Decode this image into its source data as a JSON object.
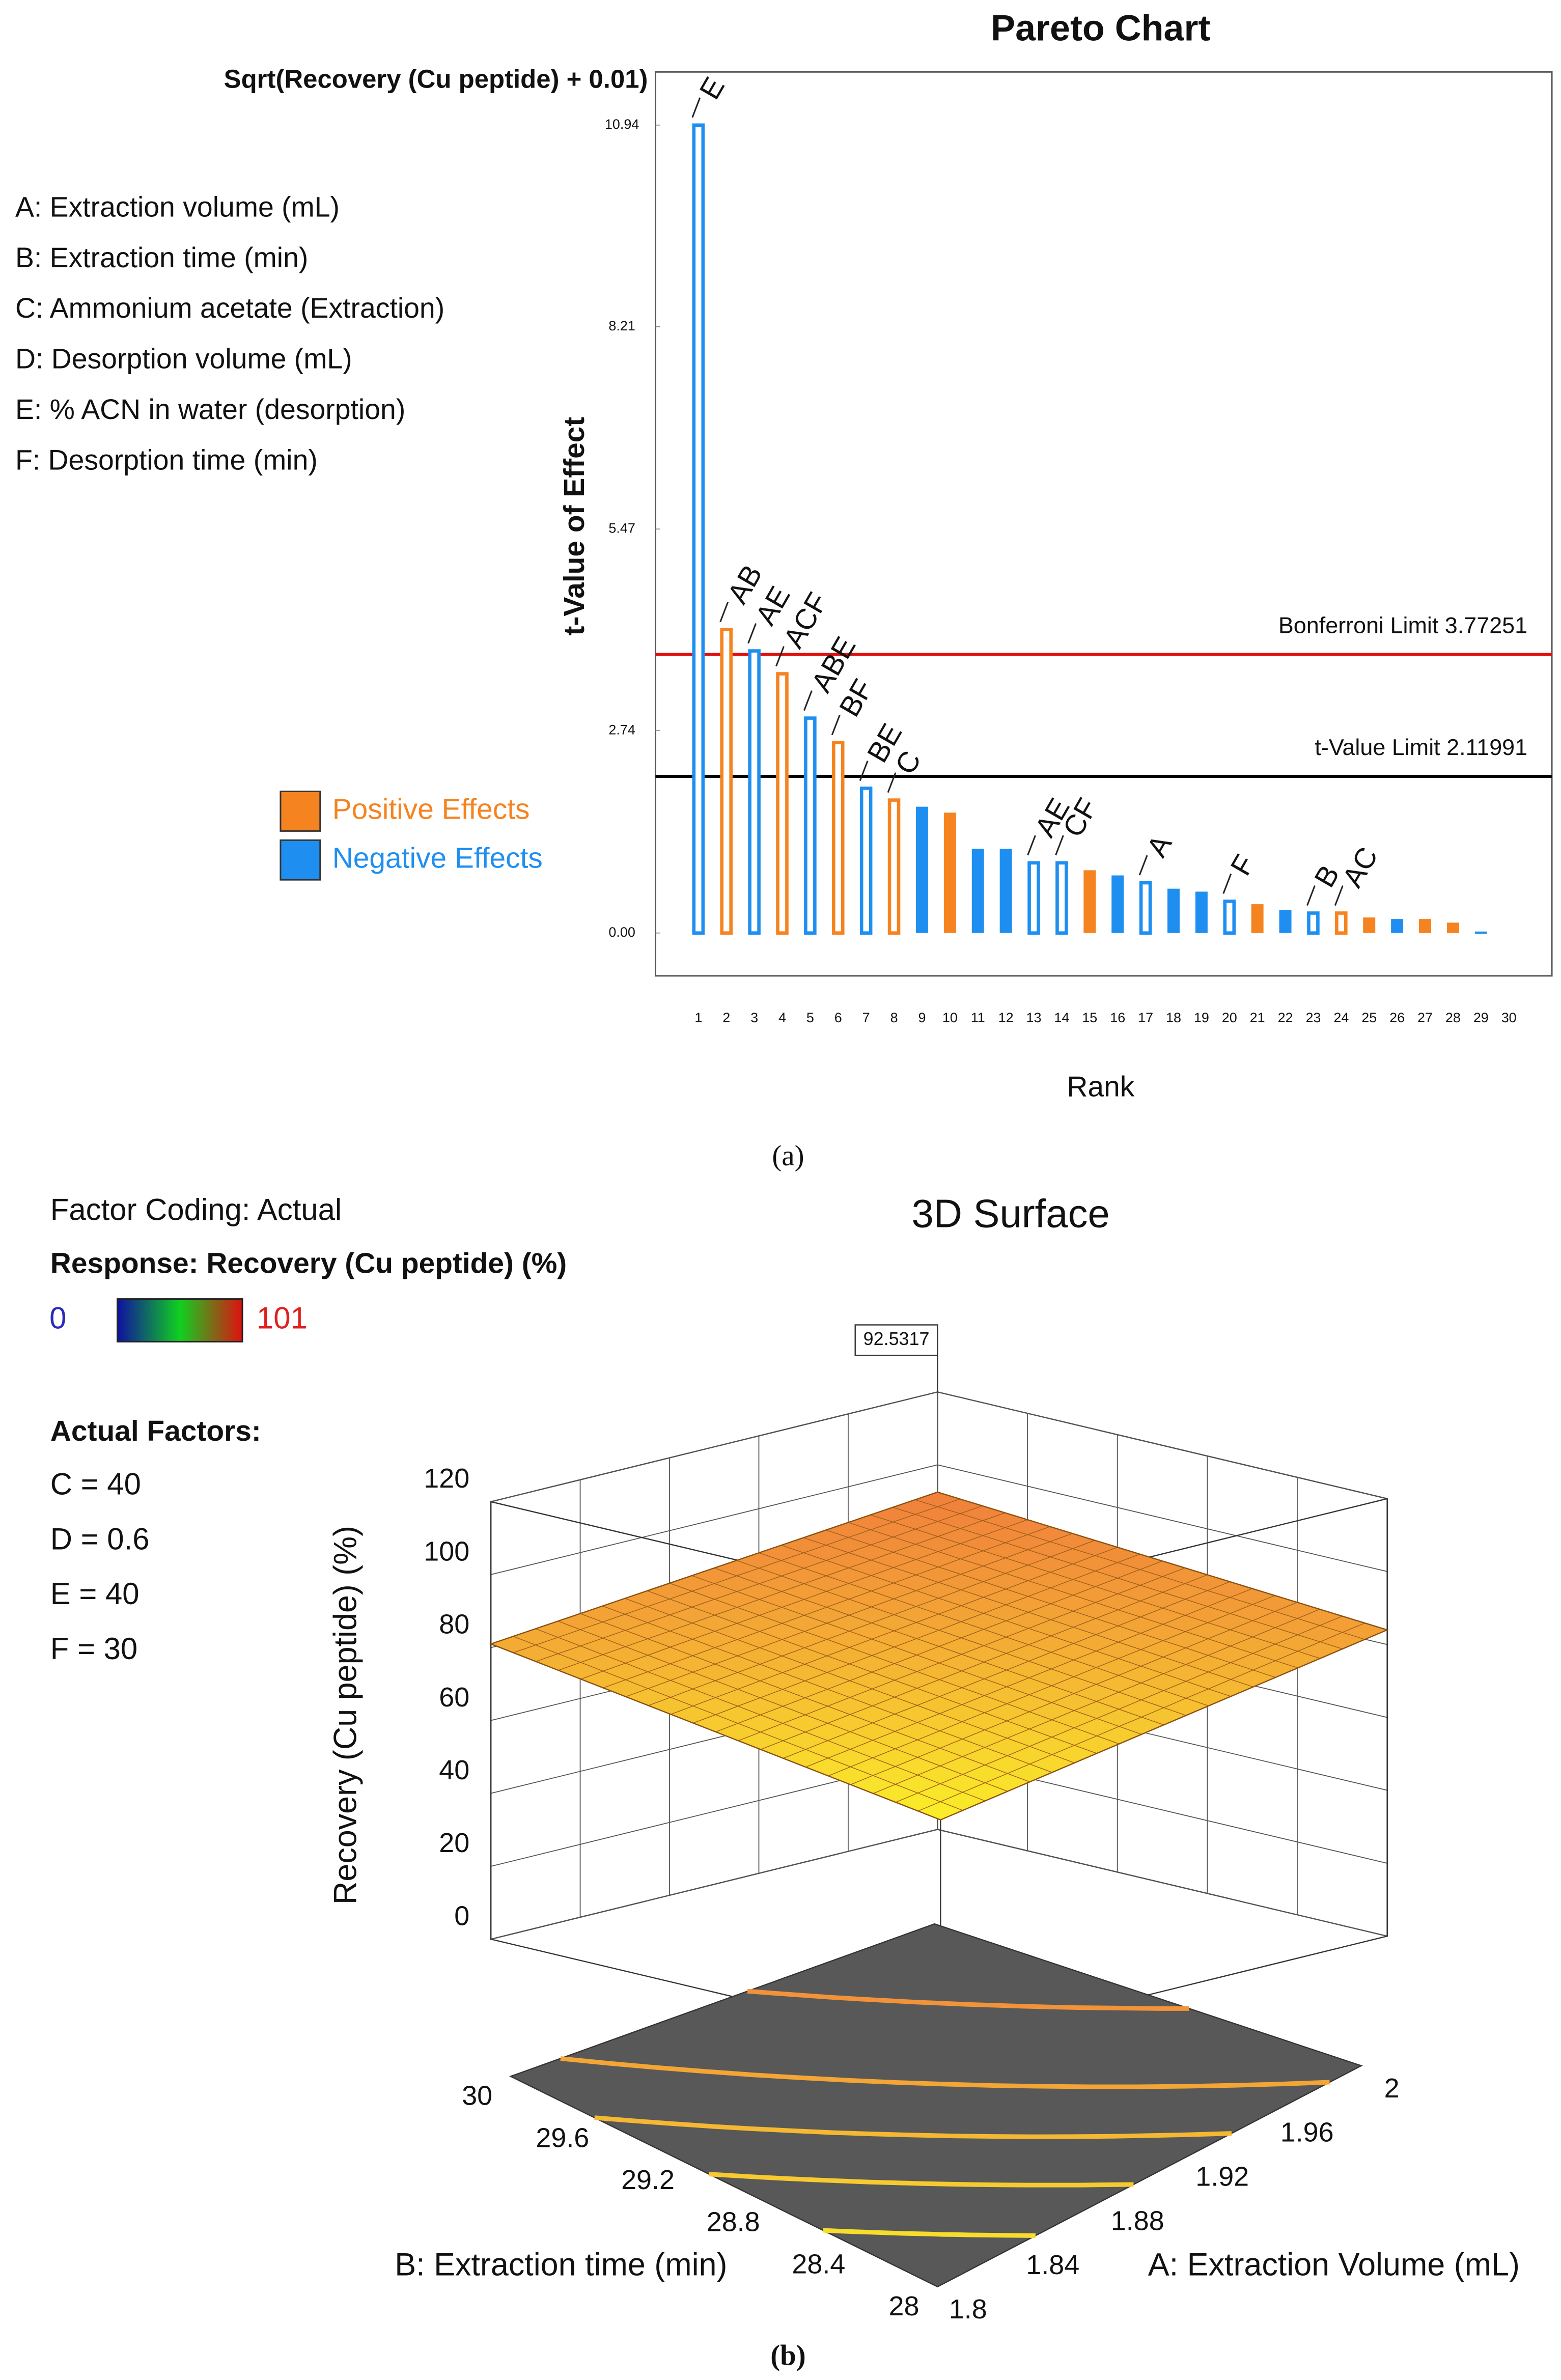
{
  "chart_data": [
    {
      "type": "bar",
      "title": "Pareto Chart",
      "subtitle": "Sqrt(Recovery (Cu peptide) + 0.01)",
      "ylabel": "t-Value of Effect",
      "xlabel": "Rank",
      "caption": "(a)",
      "factors": [
        "A: Extraction volume (mL)",
        "B: Extraction time (min)",
        "C: Ammonium acetate (Extraction)",
        "D: Desorption volume (mL)",
        "E: % ACN in water (desorption)",
        "F: Desorption time (min)"
      ],
      "categories": [
        "1",
        "2",
        "3",
        "4",
        "5",
        "6",
        "7",
        "8",
        "9",
        "10",
        "11",
        "12",
        "13",
        "14",
        "15",
        "16",
        "17",
        "18",
        "19",
        "20",
        "21",
        "22",
        "23",
        "24",
        "25",
        "26",
        "27",
        "28",
        "29",
        "30"
      ],
      "series": [
        {
          "name": "Positive Effects",
          "color": "#f5831f",
          "values": [
            null,
            4.11,
            null,
            3.51,
            null,
            2.58,
            null,
            1.8,
            null,
            1.63,
            null,
            null,
            null,
            null,
            0.85,
            null,
            null,
            null,
            null,
            null,
            0.39,
            null,
            null,
            0.27,
            0.21,
            null,
            0.19,
            0.14,
            null,
            null
          ]
        },
        {
          "name": "Negative Effects",
          "color": "#1e8ff0",
          "values": [
            10.94,
            null,
            3.82,
            null,
            2.91,
            null,
            1.96,
            null,
            1.71,
            null,
            1.14,
            1.14,
            0.95,
            0.95,
            null,
            0.78,
            0.68,
            0.6,
            0.56,
            0.43,
            null,
            0.31,
            0.27,
            null,
            null,
            0.19,
            null,
            null,
            0.02,
            null
          ]
        }
      ],
      "bar_labels": [
        "E",
        "AB",
        "AE",
        "ACF",
        "ABE",
        "BF",
        "BE",
        "C",
        null,
        null,
        null,
        null,
        "AE",
        "CF",
        null,
        null,
        "A",
        null,
        null,
        "F",
        null,
        null,
        "B",
        "AC",
        null,
        null,
        null,
        null,
        null,
        null
      ],
      "reference_lines": [
        {
          "value": 3.77251,
          "label": "Bonferroni Limit 3.77251",
          "color": "#e01010"
        },
        {
          "value": 2.11991,
          "label": "t-Value Limit 2.11991",
          "color": "#000000"
        }
      ],
      "ylim": [
        -0.58,
        11.66
      ],
      "yticks": [
        {
          "value": 0,
          "label": "0.00"
        },
        2.74,
        5.47,
        8.21,
        10.94
      ]
    },
    {
      "type": "surface",
      "title": "3D Surface",
      "caption": "(b)",
      "coding": "Factor Coding: Actual",
      "response": "Response: Recovery (Cu peptide) (%)",
      "colorbar": {
        "min": 0,
        "max": 101,
        "min_color": "#2a2ab8",
        "max_color": "#e02020"
      },
      "factors_title": "Actual Factors:",
      "factors": [
        "C = 40",
        "D = 0.6",
        "E = 40",
        "F = 30"
      ],
      "xlabel": "A: Extraction Volume (mL)",
      "ylabel": "B: Extraction time (min)",
      "zlabel": "Recovery (Cu peptide) (%)",
      "xlim": [
        1.8,
        2
      ],
      "xticks": [
        1.8,
        1.84,
        1.88,
        1.92,
        1.96,
        2
      ],
      "ylim": [
        28,
        30
      ],
      "yticks": [
        28,
        28.4,
        28.8,
        29.2,
        29.6,
        30
      ],
      "zlim": [
        0,
        120
      ],
      "zticks": [
        0,
        20,
        40,
        60,
        80,
        100,
        120
      ],
      "z": [
        [
          62,
          81
        ],
        [
          84,
          92.5317
        ]
      ],
      "annotation": 92.5317
    }
  ]
}
